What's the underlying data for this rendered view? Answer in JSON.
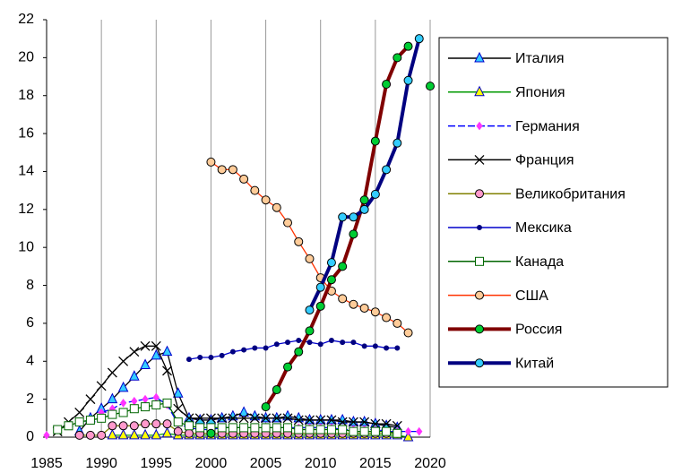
{
  "chart_data": {
    "type": "line",
    "x": [
      1985,
      1986,
      1987,
      1988,
      1989,
      1990,
      1991,
      1992,
      1993,
      1994,
      1995,
      1996,
      1997,
      1998,
      1999,
      2000,
      2001,
      2002,
      2003,
      2004,
      2005,
      2006,
      2007,
      2008,
      2009,
      2010,
      2011,
      2012,
      2013,
      2014,
      2015,
      2016,
      2017,
      2018,
      2019,
      2020
    ],
    "xlim": [
      1985,
      2020
    ],
    "xticks": [
      1985,
      1990,
      1995,
      2000,
      2005,
      2010,
      2015,
      2020
    ],
    "ylim": [
      0,
      22
    ],
    "yticks": [
      0,
      2,
      4,
      6,
      8,
      10,
      12,
      14,
      16,
      18,
      20,
      22
    ],
    "grid": "x",
    "legend": "right",
    "series": [
      {
        "name": "Италия",
        "color": "#000000",
        "marker": "triangle",
        "marker_color": "#33ccff",
        "values": [
          null,
          null,
          null,
          0.3,
          1.0,
          1.5,
          2.0,
          2.6,
          3.2,
          3.8,
          4.3,
          4.5,
          2.3,
          1.0,
          0.9,
          0.9,
          1.0,
          1.1,
          1.3,
          1.1,
          1.0,
          1.0,
          1.1,
          1.0,
          0.9,
          0.9,
          0.9,
          0.9,
          0.8,
          0.8,
          0.7,
          0.6,
          0.5,
          null,
          null,
          null
        ]
      },
      {
        "name": "Япония",
        "color": "#009900",
        "marker": "triangle",
        "marker_color": "#ffff00",
        "values": [
          null,
          null,
          null,
          null,
          null,
          null,
          0.1,
          0.1,
          0.1,
          0.1,
          0.1,
          0.2,
          0.1,
          0.1,
          0.1,
          0.1,
          0.1,
          0.1,
          0.1,
          0.1,
          0.1,
          0.1,
          0.1,
          0.1,
          0.1,
          0.1,
          0.1,
          0.1,
          0.1,
          0.1,
          0.1,
          0.1,
          0.1,
          0.0,
          null,
          null
        ]
      },
      {
        "name": "Германия",
        "color": "#0000ff",
        "dash": true,
        "marker": "diamond",
        "marker_color": "#ff33ff",
        "values": [
          0.1,
          null,
          null,
          null,
          null,
          1.3,
          1.5,
          1.8,
          1.9,
          2.0,
          2.1,
          1.7,
          0.7,
          0.5,
          0.4,
          0.4,
          0.5,
          0.5,
          0.5,
          0.5,
          0.5,
          0.5,
          0.5,
          0.5,
          0.5,
          0.5,
          0.5,
          0.4,
          0.4,
          0.4,
          0.4,
          0.3,
          0.3,
          0.3,
          0.3,
          null
        ]
      },
      {
        "name": "Франция",
        "color": "#000000",
        "marker": "x",
        "marker_color": "#000000",
        "values": [
          null,
          0.3,
          0.8,
          1.3,
          2.0,
          2.7,
          3.4,
          4.0,
          4.5,
          4.8,
          4.8,
          3.5,
          1.5,
          1.0,
          1.0,
          1.0,
          1.0,
          1.0,
          1.0,
          1.0,
          1.0,
          1.0,
          1.0,
          0.9,
          0.9,
          0.9,
          0.9,
          0.8,
          0.8,
          0.8,
          0.7,
          0.7,
          0.6,
          null,
          null,
          null
        ]
      },
      {
        "name": "Великобритания",
        "color": "#808000",
        "marker": "circle",
        "marker_color": "#ff99cc",
        "values": [
          null,
          null,
          null,
          0.1,
          0.1,
          0.1,
          0.6,
          0.6,
          0.6,
          0.7,
          0.7,
          0.7,
          0.3,
          0.2,
          0.2,
          0.2,
          0.2,
          0.2,
          0.2,
          0.2,
          0.2,
          0.2,
          0.2,
          0.2,
          0.2,
          0.2,
          0.2,
          0.2,
          0.2,
          0.2,
          0.2,
          0.2,
          0.2,
          null,
          null,
          null
        ]
      },
      {
        "name": "Мексика",
        "color": "#0000cc",
        "marker": "dot",
        "marker_color": "#000080",
        "values": [
          null,
          null,
          null,
          null,
          null,
          null,
          null,
          null,
          null,
          null,
          null,
          null,
          null,
          4.1,
          4.2,
          4.2,
          4.3,
          4.5,
          4.6,
          4.7,
          4.7,
          4.9,
          5.0,
          5.1,
          5.0,
          4.9,
          5.1,
          5.0,
          5.0,
          4.8,
          4.8,
          4.7,
          4.7,
          null,
          null,
          null
        ]
      },
      {
        "name": "Канада",
        "color": "#006600",
        "marker": "square",
        "marker_color": "#ffffff",
        "values": [
          null,
          0.4,
          0.6,
          0.8,
          0.9,
          1.0,
          1.2,
          1.3,
          1.5,
          1.6,
          1.7,
          1.8,
          0.8,
          0.6,
          0.5,
          0.5,
          0.5,
          0.5,
          0.5,
          0.5,
          0.5,
          0.5,
          0.5,
          0.4,
          0.4,
          0.4,
          0.4,
          0.4,
          0.3,
          0.3,
          0.3,
          0.3,
          0.2,
          null,
          null,
          null
        ]
      },
      {
        "name": "США",
        "color": "#ff3300",
        "marker": "circle",
        "marker_color": "#ffcc99",
        "values": [
          null,
          null,
          null,
          null,
          null,
          null,
          null,
          null,
          null,
          null,
          null,
          null,
          null,
          null,
          null,
          14.5,
          14.1,
          14.1,
          13.6,
          13.0,
          12.5,
          12.1,
          11.3,
          10.3,
          9.4,
          8.4,
          7.7,
          7.3,
          7.0,
          6.8,
          6.6,
          6.3,
          6.0,
          5.5,
          null,
          null
        ]
      },
      {
        "name": "Россия",
        "color": "#800000",
        "width": 4,
        "marker": "circle",
        "marker_color": "#00cc33",
        "values": [
          null,
          null,
          null,
          null,
          null,
          null,
          null,
          null,
          null,
          null,
          null,
          null,
          null,
          null,
          null,
          0.2,
          null,
          null,
          null,
          null,
          1.6,
          2.5,
          3.7,
          4.5,
          5.6,
          6.9,
          8.3,
          9.0,
          10.7,
          12.5,
          15.6,
          18.6,
          20.0,
          20.6,
          null,
          18.5
        ]
      },
      {
        "name": "Китай",
        "color": "#000080",
        "width": 4,
        "marker": "circle",
        "marker_color": "#33ccff",
        "values": [
          null,
          null,
          null,
          null,
          null,
          null,
          null,
          null,
          null,
          null,
          null,
          null,
          null,
          null,
          null,
          null,
          null,
          null,
          null,
          null,
          null,
          null,
          null,
          null,
          6.7,
          7.9,
          9.2,
          11.6,
          11.6,
          12.0,
          12.8,
          14.1,
          15.5,
          18.8,
          21.0,
          null
        ]
      }
    ]
  }
}
